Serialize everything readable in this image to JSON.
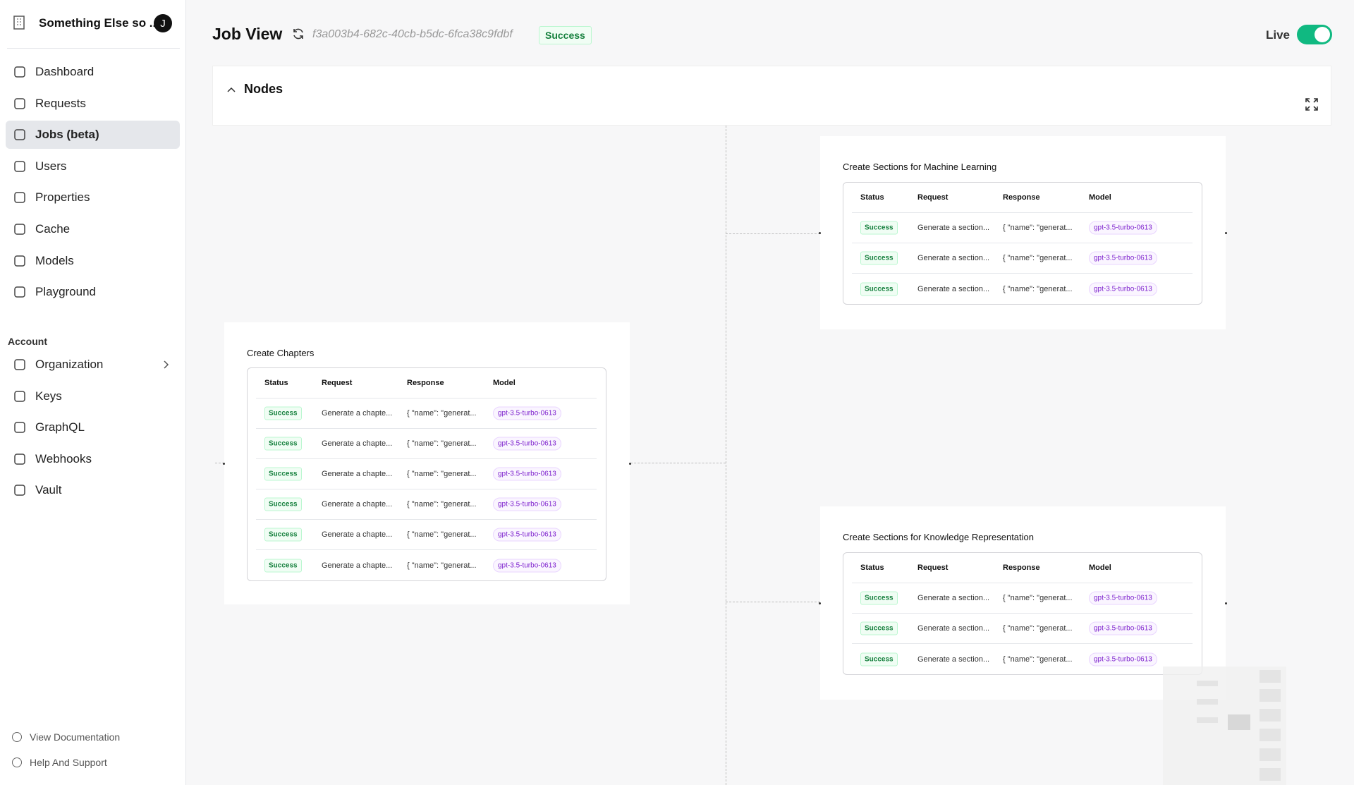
{
  "sidebar": {
    "org": "Something Else so ...",
    "avatar": "J",
    "nav": [
      "Dashboard",
      "Requests",
      "Jobs (beta)",
      "Users",
      "Properties",
      "Cache",
      "Models",
      "Playground"
    ],
    "account_heading": "Account",
    "account_nav": [
      "Organization",
      "Keys",
      "GraphQL",
      "Webhooks",
      "Vault"
    ],
    "footer": [
      "View Documentation",
      "Help And Support"
    ]
  },
  "header": {
    "title": "Job View",
    "job_id": "f3a003b4-682c-40cb-b5dc-6fca38c9fdbf",
    "status": "Success",
    "live": "Live"
  },
  "panel": {
    "title": "Nodes"
  },
  "nodes": [
    {
      "title": "Create Chapters",
      "columns": [
        "Status",
        "Request",
        "Response",
        "Model"
      ],
      "rows": [
        [
          "Success",
          "Generate a chapte...",
          "{ \"name\": \"generat...",
          "gpt-3.5-turbo-0613"
        ],
        [
          "Success",
          "Generate a chapte...",
          "{ \"name\": \"generat...",
          "gpt-3.5-turbo-0613"
        ],
        [
          "Success",
          "Generate a chapte...",
          "{ \"name\": \"generat...",
          "gpt-3.5-turbo-0613"
        ],
        [
          "Success",
          "Generate a chapte...",
          "{ \"name\": \"generat...",
          "gpt-3.5-turbo-0613"
        ],
        [
          "Success",
          "Generate a chapte...",
          "{ \"name\": \"generat...",
          "gpt-3.5-turbo-0613"
        ],
        [
          "Success",
          "Generate a chapte...",
          "{ \"name\": \"generat...",
          "gpt-3.5-turbo-0613"
        ]
      ]
    },
    {
      "title": "Create Sections for Machine Learning",
      "columns": [
        "Status",
        "Request",
        "Response",
        "Model"
      ],
      "rows": [
        [
          "Success",
          "Generate a section...",
          "{ \"name\": \"generat...",
          "gpt-3.5-turbo-0613"
        ],
        [
          "Success",
          "Generate a section...",
          "{ \"name\": \"generat...",
          "gpt-3.5-turbo-0613"
        ],
        [
          "Success",
          "Generate a section...",
          "{ \"name\": \"generat...",
          "gpt-3.5-turbo-0613"
        ]
      ]
    },
    {
      "title": "Create Sections for Knowledge Representation",
      "columns": [
        "Status",
        "Request",
        "Response",
        "Model"
      ],
      "rows": [
        [
          "Success",
          "Generate a section...",
          "{ \"name\": \"generat...",
          "gpt-3.5-turbo-0613"
        ],
        [
          "Success",
          "Generate a section...",
          "{ \"name\": \"generat...",
          "gpt-3.5-turbo-0613"
        ],
        [
          "Success",
          "Generate a section...",
          "{ \"name\": \"generat...",
          "gpt-3.5-turbo-0613"
        ]
      ]
    }
  ]
}
